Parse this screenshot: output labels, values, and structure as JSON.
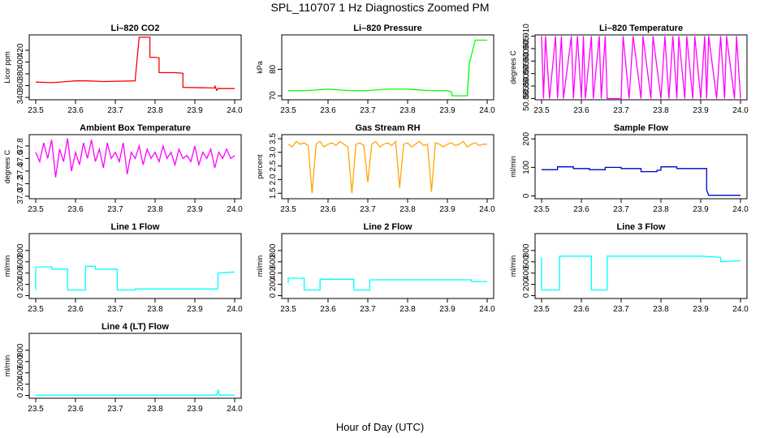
{
  "figure": {
    "title": "SPL_110707  1 Hz Diagnostics Zoomed PM",
    "xlabel": "Hour of Day (UTC)"
  },
  "chart_data": [
    {
      "type": "line",
      "title": "Li–820 CO2",
      "ylabel": "Licor ppm",
      "color": "#ff0000",
      "xlim": [
        23.5,
        24.0
      ],
      "xticks": [
        "23.5",
        "23.6",
        "23.7",
        "23.8",
        "23.9",
        "24.0"
      ],
      "ylim": [
        336,
        446
      ],
      "yticks": [
        "340",
        "360",
        "380",
        "400",
        "420"
      ],
      "x": [
        23.5,
        23.54,
        23.58,
        23.6,
        23.63,
        23.67,
        23.75,
        23.75,
        23.76,
        23.787,
        23.787,
        23.8,
        23.81,
        23.81,
        23.85,
        23.87,
        23.87,
        23.95,
        23.95,
        23.955,
        23.958,
        23.962,
        24.0
      ],
      "y": [
        366,
        365,
        367,
        368,
        368,
        367,
        368,
        370,
        442,
        442,
        408,
        408,
        407,
        382,
        382,
        381,
        357,
        356,
        360,
        352,
        355,
        355,
        355
      ]
    },
    {
      "type": "line",
      "title": "Li–820 Pressure",
      "ylabel": "kPa",
      "color": "#00ff00",
      "xlim": [
        23.5,
        24.0
      ],
      "xticks": [
        "23.5",
        "23.6",
        "23.7",
        "23.8",
        "23.9",
        "24.0"
      ],
      "ylim": [
        68.5,
        93
      ],
      "yticks": [
        "70",
        "80"
      ],
      "x": [
        23.5,
        23.55,
        23.6,
        23.65,
        23.7,
        23.75,
        23.8,
        23.85,
        23.9,
        23.91,
        23.912,
        23.95,
        23.955,
        23.97,
        23.99,
        24.0
      ],
      "y": [
        72,
        72,
        72.5,
        72,
        72,
        72.5,
        72.5,
        72,
        72,
        71.5,
        70,
        70,
        82,
        91,
        91,
        91
      ]
    },
    {
      "type": "line",
      "title": "Li–820 Temperature",
      "ylabel": "degrees C",
      "color": "#ff00ff",
      "xlim": [
        23.5,
        24.0
      ],
      "xticks": [
        "23.5",
        "23.6",
        "23.7",
        "23.8",
        "23.9",
        "24.0"
      ],
      "ylim": [
        50.8845,
        50.9105
      ],
      "yticks": [
        "50.885",
        "50.890",
        "50.895",
        "50.900",
        "50.905",
        "50.910"
      ],
      "low": 50.885,
      "high": 50.91,
      "x": [
        23.5,
        23.505,
        23.51,
        23.52,
        23.535,
        23.54,
        23.55,
        23.555,
        23.575,
        23.58,
        23.59,
        23.6,
        23.605,
        23.61,
        23.625,
        23.63,
        23.645,
        23.65,
        23.66,
        23.665,
        23.7,
        23.705,
        23.72,
        23.73,
        23.75,
        23.755,
        23.775,
        23.78,
        23.8,
        23.81,
        23.82,
        23.83,
        23.84,
        23.845,
        23.86,
        23.865,
        23.88,
        23.885,
        23.9,
        23.91,
        23.915,
        23.92,
        23.94,
        23.95,
        23.96,
        23.965,
        23.985,
        23.99,
        24.0
      ],
      "y": [
        50.91,
        50.885,
        50.91,
        50.885,
        50.91,
        50.885,
        50.91,
        50.885,
        50.91,
        50.885,
        50.91,
        50.885,
        50.91,
        50.885,
        50.91,
        50.885,
        50.91,
        50.885,
        50.91,
        50.885,
        50.885,
        50.91,
        50.885,
        50.91,
        50.885,
        50.91,
        50.885,
        50.91,
        50.885,
        50.91,
        50.885,
        50.91,
        50.885,
        50.91,
        50.885,
        50.91,
        50.885,
        50.91,
        50.885,
        50.91,
        50.885,
        50.91,
        50.885,
        50.91,
        50.885,
        50.91,
        50.885,
        50.91,
        50.885
      ]
    },
    {
      "type": "line",
      "title": "Ambient Box Temperature",
      "ylabel": "degrees C",
      "color": "#ff00ff",
      "xlim": [
        23.5,
        24.0
      ],
      "xticks": [
        "23.5",
        "23.6",
        "23.7",
        "23.8",
        "23.9",
        "24.0"
      ],
      "ylim": [
        36.96,
        37.98
      ],
      "yticks": [
        "37.0",
        "37.2",
        "37.4",
        "37.6",
        "37.8"
      ],
      "x": [
        23.5,
        23.51,
        23.52,
        23.53,
        23.54,
        23.55,
        23.56,
        23.57,
        23.58,
        23.59,
        23.6,
        23.61,
        23.62,
        23.63,
        23.64,
        23.65,
        23.66,
        23.67,
        23.68,
        23.69,
        23.7,
        23.71,
        23.72,
        23.73,
        23.74,
        23.75,
        23.76,
        23.77,
        23.78,
        23.79,
        23.8,
        23.81,
        23.82,
        23.83,
        23.84,
        23.85,
        23.86,
        23.87,
        23.88,
        23.89,
        23.9,
        23.91,
        23.92,
        23.93,
        23.94,
        23.95,
        23.96,
        23.97,
        23.98,
        23.99,
        24.0
      ],
      "y": [
        37.7,
        37.55,
        37.85,
        37.6,
        37.9,
        37.3,
        37.75,
        37.55,
        37.92,
        37.4,
        37.7,
        37.5,
        37.85,
        37.6,
        37.9,
        37.55,
        37.75,
        37.45,
        37.85,
        37.6,
        37.7,
        37.55,
        37.85,
        37.35,
        37.7,
        37.6,
        37.8,
        37.5,
        37.75,
        37.6,
        37.7,
        37.55,
        37.8,
        37.6,
        37.7,
        37.5,
        37.75,
        37.6,
        37.65,
        37.55,
        37.8,
        37.5,
        37.7,
        37.6,
        37.75,
        37.45,
        37.7,
        37.6,
        37.75,
        37.6,
        37.65
      ]
    },
    {
      "type": "line",
      "title": "Gas Stream RH",
      "ylabel": "percent",
      "color": "#ffa500",
      "xlim": [
        23.5,
        24.0
      ],
      "xticks": [
        "23.5",
        "23.6",
        "23.7",
        "23.8",
        "23.9",
        "24.0"
      ],
      "ylim": [
        1.3,
        3.65
      ],
      "yticks": [
        "1.5",
        "2.0",
        "2.5",
        "3.0",
        "3.5"
      ],
      "x": [
        23.5,
        23.51,
        23.52,
        23.53,
        23.54,
        23.55,
        23.56,
        23.57,
        23.58,
        23.59,
        23.6,
        23.61,
        23.62,
        23.63,
        23.64,
        23.65,
        23.66,
        23.67,
        23.68,
        23.69,
        23.7,
        23.71,
        23.72,
        23.73,
        23.74,
        23.75,
        23.76,
        23.77,
        23.78,
        23.79,
        23.8,
        23.81,
        23.82,
        23.83,
        23.84,
        23.85,
        23.86,
        23.87,
        23.88,
        23.89,
        23.9,
        23.91,
        23.92,
        23.93,
        23.94,
        23.95,
        23.96,
        23.97,
        23.98,
        23.99,
        24.0
      ],
      "y": [
        3.3,
        3.2,
        3.4,
        3.3,
        3.35,
        3.25,
        1.5,
        3.3,
        3.4,
        3.2,
        3.3,
        3.35,
        3.25,
        3.4,
        3.3,
        3.2,
        1.5,
        3.3,
        3.35,
        3.25,
        1.9,
        3.3,
        3.4,
        3.2,
        3.3,
        3.35,
        3.25,
        3.4,
        1.7,
        3.3,
        3.35,
        3.2,
        3.3,
        3.4,
        3.25,
        3.3,
        1.55,
        3.35,
        3.3,
        3.2,
        3.3,
        3.35,
        3.25,
        3.3,
        3.4,
        3.2,
        3.3,
        3.35,
        3.25,
        3.3,
        3.3
      ]
    },
    {
      "type": "line",
      "title": "Sample Flow",
      "ylabel": "ml/min",
      "color": "#0000cd",
      "xlim": [
        23.5,
        24.0
      ],
      "xticks": [
        "23.5",
        "23.6",
        "23.7",
        "23.8",
        "23.9",
        "24.0"
      ],
      "ylim": [
        -10,
        215
      ],
      "yticks": [
        "0",
        "100",
        "200"
      ],
      "x": [
        23.5,
        23.54,
        23.54,
        23.58,
        23.58,
        23.62,
        23.62,
        23.66,
        23.66,
        23.7,
        23.7,
        23.75,
        23.75,
        23.79,
        23.79,
        23.8,
        23.8,
        23.84,
        23.84,
        23.915,
        23.915,
        23.92,
        24.0
      ],
      "y": [
        92,
        92,
        102,
        102,
        96,
        96,
        92,
        92,
        100,
        100,
        96,
        96,
        85,
        85,
        90,
        90,
        102,
        102,
        96,
        96,
        20,
        2,
        2
      ]
    },
    {
      "type": "line",
      "title": "Line 1 Flow",
      "ylabel": "ml/min",
      "color": "#00ffff",
      "xlim": [
        23.5,
        24.0
      ],
      "xticks": [
        "23.5",
        "23.6",
        "23.7",
        "23.8",
        "23.9",
        "24.0"
      ],
      "ylim": [
        -50,
        1100
      ],
      "yticks": [
        "0",
        "200",
        "400",
        "600",
        "800"
      ],
      "x": [
        23.5,
        23.5,
        23.54,
        23.54,
        23.58,
        23.58,
        23.625,
        23.625,
        23.65,
        23.65,
        23.705,
        23.705,
        23.75,
        23.75,
        23.958,
        23.958,
        24.0
      ],
      "y": [
        100,
        510,
        510,
        470,
        470,
        100,
        100,
        520,
        520,
        470,
        470,
        100,
        100,
        120,
        120,
        400,
        420
      ]
    },
    {
      "type": "line",
      "title": "Line 2 Flow",
      "ylabel": "ml/min",
      "color": "#00ffff",
      "xlim": [
        23.5,
        24.0
      ],
      "xticks": [
        "23.5",
        "23.6",
        "23.7",
        "23.8",
        "23.9",
        "24.0"
      ],
      "ylim": [
        -50,
        1100
      ],
      "yticks": [
        "0",
        "200",
        "400",
        "600",
        "800"
      ],
      "x": [
        23.5,
        23.5,
        23.54,
        23.54,
        23.58,
        23.58,
        23.665,
        23.665,
        23.705,
        23.705,
        23.96,
        23.96,
        24.0
      ],
      "y": [
        220,
        310,
        310,
        100,
        100,
        290,
        290,
        100,
        100,
        280,
        280,
        250,
        250
      ]
    },
    {
      "type": "line",
      "title": "Line 3 Flow",
      "ylabel": "ml/min",
      "color": "#00ffff",
      "xlim": [
        23.5,
        24.0
      ],
      "xticks": [
        "23.5",
        "23.6",
        "23.7",
        "23.8",
        "23.9",
        "24.0"
      ],
      "ylim": [
        -50,
        1100
      ],
      "yticks": [
        "0",
        "200",
        "400",
        "600",
        "800"
      ],
      "x": [
        23.5,
        23.5,
        23.505,
        23.505,
        23.545,
        23.545,
        23.625,
        23.625,
        23.665,
        23.665,
        23.8,
        23.9,
        23.95,
        23.95,
        24.0
      ],
      "y": [
        680,
        100,
        100,
        100,
        100,
        700,
        700,
        100,
        100,
        700,
        700,
        700,
        680,
        600,
        620
      ]
    },
    {
      "type": "line",
      "title": "Line 4 (LT) Flow",
      "ylabel": "ml/min",
      "color": "#00ffff",
      "xlim": [
        23.5,
        24.0
      ],
      "xticks": [
        "23.5",
        "23.6",
        "23.7",
        "23.8",
        "23.9",
        "24.0"
      ],
      "ylim": [
        -50,
        1100
      ],
      "yticks": [
        "0",
        "200",
        "400",
        "600",
        "800"
      ],
      "x": [
        23.5,
        23.7,
        23.9,
        23.955,
        23.958,
        23.962,
        24.0
      ],
      "y": [
        5,
        5,
        5,
        5,
        90,
        5,
        5
      ]
    }
  ]
}
